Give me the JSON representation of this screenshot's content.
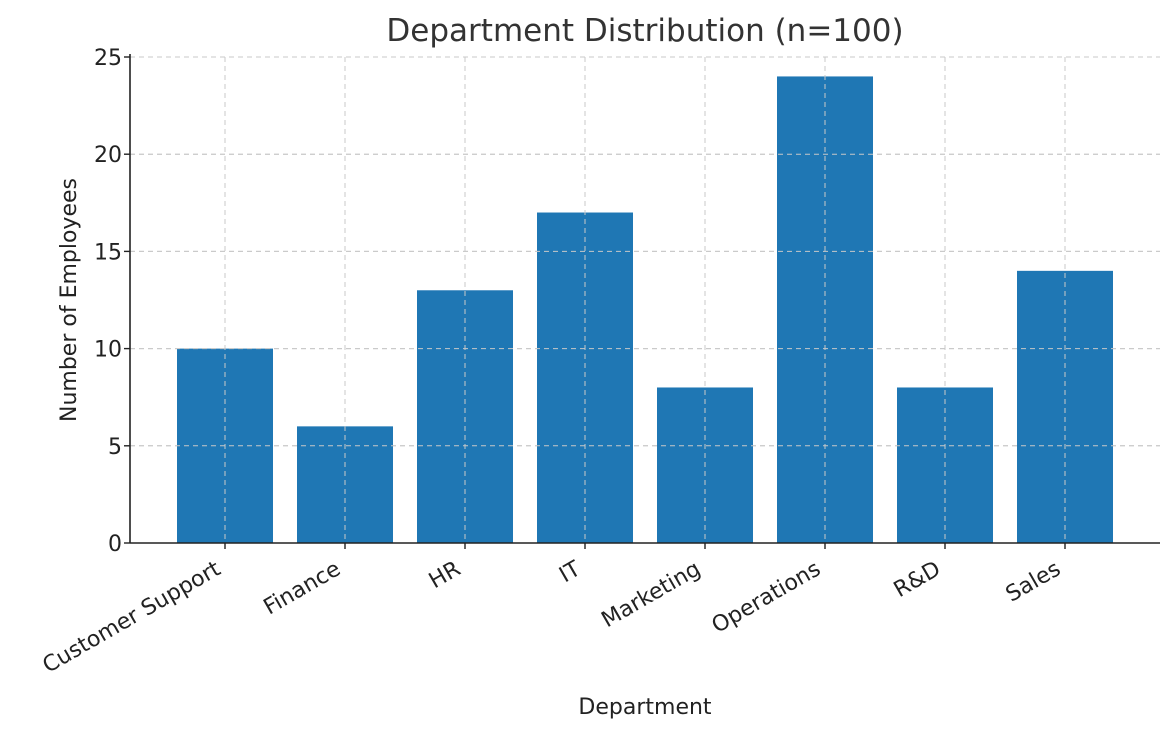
{
  "chart_data": {
    "type": "bar",
    "title": "Department Distribution (n=100)",
    "xlabel": "Department",
    "ylabel": "Number of Employees",
    "categories": [
      "Customer Support",
      "Finance",
      "HR",
      "IT",
      "Marketing",
      "Operations",
      "R&D",
      "Sales"
    ],
    "values": [
      10,
      6,
      13,
      17,
      8,
      24,
      8,
      14
    ],
    "ylim": [
      0,
      25
    ],
    "yticks": [
      0,
      5,
      10,
      15,
      20,
      25
    ],
    "grid": true,
    "bar_color": "#1f77b4"
  }
}
